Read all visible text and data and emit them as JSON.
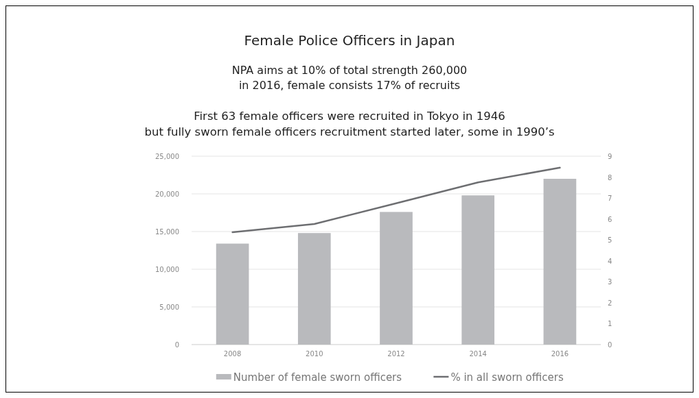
{
  "chart_data": {
    "type": "bar",
    "title": "Female Police Officers in Japan",
    "subtitle": "NPA aims at 10% of total strength 260,000\nin 2016, female consists 17% of recruits",
    "annotations": [
      "First 63 female officers were recruited in Tokyo in 1946\nbut fully sworn female officers recruitment started later, some in 1990’s"
    ],
    "categories": [
      "2008",
      "2010",
      "2012",
      "2014",
      "2016"
    ],
    "series": [
      {
        "name": "Number of female sworn officers",
        "color": "#b9babd",
        "values": [
          13400,
          14800,
          17600,
          19800,
          22000
        ]
      },
      {
        "name": "% in all sworn officers",
        "type": "line",
        "axis": "y2",
        "color": "#6d6e71",
        "values": [
          5.37,
          5.76,
          6.75,
          7.75,
          8.45
        ]
      }
    ],
    "ylim": [
      0,
      25000
    ],
    "yticks": [
      {
        "value": 0,
        "label": "0"
      },
      {
        "value": 5000,
        "label": "5,000"
      },
      {
        "value": 10000,
        "label": "10,000"
      },
      {
        "value": 15000,
        "label": "15,000"
      },
      {
        "value": 20000,
        "label": "20,000"
      },
      {
        "value": 25000,
        "label": "25,000"
      }
    ],
    "y2lim": [
      0,
      9
    ],
    "y2ticks": [
      0,
      1,
      2,
      3,
      4,
      5,
      6,
      7,
      8,
      9
    ],
    "grid": "y",
    "legend": "bottom",
    "marker": "none"
  }
}
